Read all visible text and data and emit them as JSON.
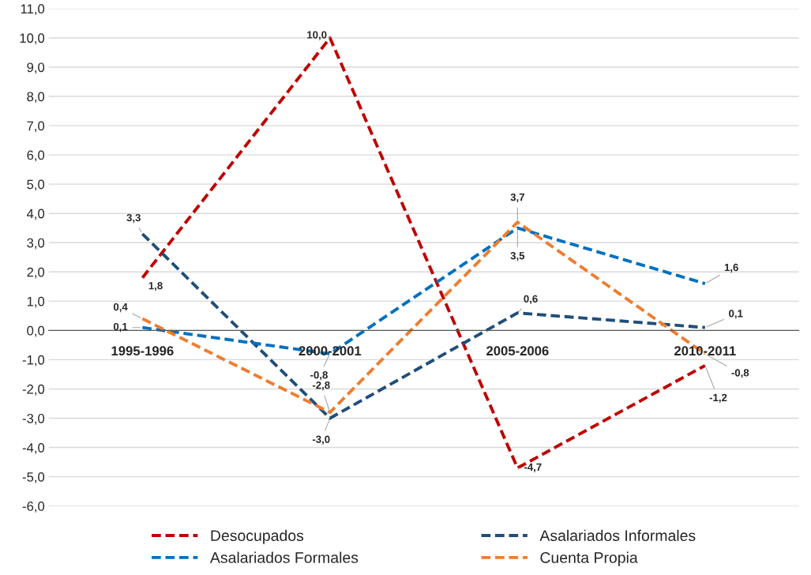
{
  "chart_data": {
    "type": "line",
    "categories": [
      "1995-1996",
      "2000-2001",
      "2005-2006",
      "2010-2011"
    ],
    "series": [
      {
        "name": "Desocupados",
        "color": "#c00000",
        "values": [
          1.8,
          10.0,
          -4.7,
          -1.2
        ],
        "value_labels": [
          "1,8",
          "10,0",
          "-4,7",
          "-1,2"
        ]
      },
      {
        "name": "Asalariados Informales",
        "color": "#1f4e79",
        "values": [
          3.3,
          -3.0,
          0.6,
          0.1
        ],
        "value_labels": [
          "3,3",
          "-3,0",
          "0,6",
          "0,1"
        ]
      },
      {
        "name": "Asalariados Formales",
        "color": "#0070c0",
        "values": [
          0.1,
          -0.8,
          3.5,
          1.6
        ],
        "value_labels": [
          "0,1",
          "-0,8",
          "3,5",
          "1,6"
        ]
      },
      {
        "name": "Cuenta Propia",
        "color": "#ed7d31",
        "values": [
          0.4,
          -2.8,
          3.7,
          -0.8
        ],
        "value_labels": [
          "0,4",
          "-2,8",
          "3,7",
          "-0,8"
        ]
      }
    ],
    "ylim": [
      -6,
      11
    ],
    "yticks": [
      {
        "value": -6,
        "label": "-6,0"
      },
      {
        "value": -5,
        "label": "-5,0"
      },
      {
        "value": -4,
        "label": "-4,0"
      },
      {
        "value": -3,
        "label": "-3,0"
      },
      {
        "value": -2,
        "label": "-2,0"
      },
      {
        "value": -1,
        "label": "-1,0"
      },
      {
        "value": 0,
        "label": "0,0"
      },
      {
        "value": 1,
        "label": "1,0"
      },
      {
        "value": 2,
        "label": "2,0"
      },
      {
        "value": 3,
        "label": "3,0"
      },
      {
        "value": 4,
        "label": "4,0"
      },
      {
        "value": 5,
        "label": "5,0"
      },
      {
        "value": 6,
        "label": "6,0"
      },
      {
        "value": 7,
        "label": "7,0"
      },
      {
        "value": 8,
        "label": "8,0"
      },
      {
        "value": 9,
        "label": "9,0"
      },
      {
        "value": 10,
        "label": "10,0"
      },
      {
        "value": 11,
        "label": "11,0"
      }
    ],
    "grid": "y",
    "legend": "bottom",
    "line_style": "dashed",
    "marker": "none"
  }
}
